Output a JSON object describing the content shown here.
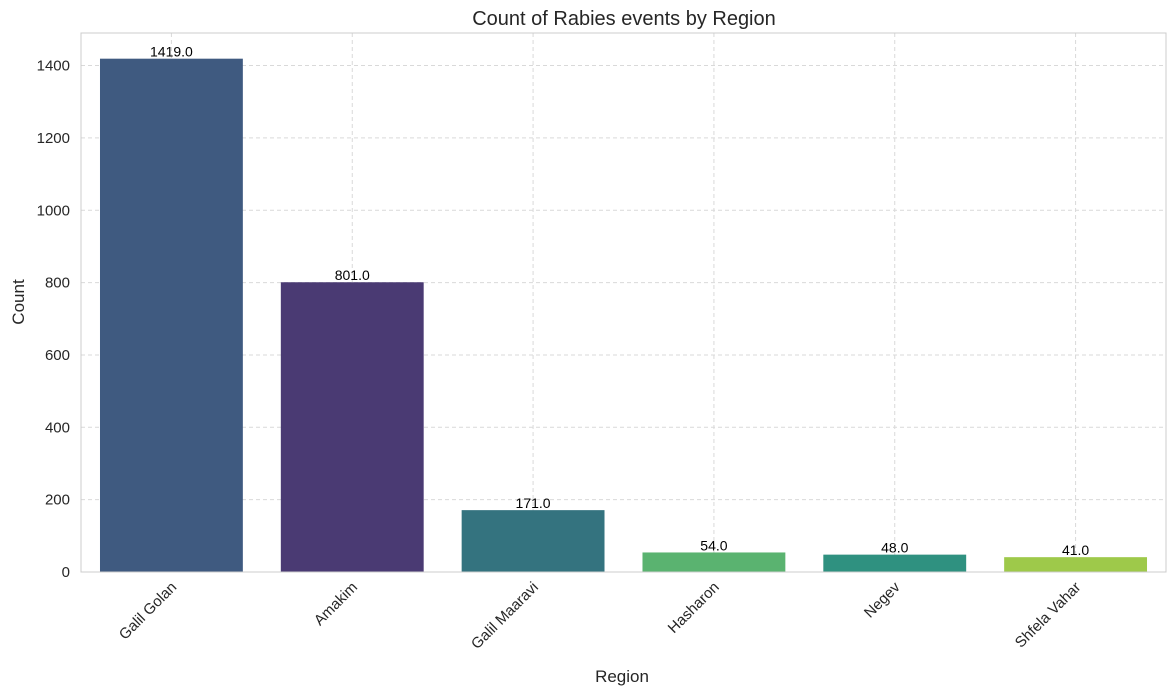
{
  "chart_data": {
    "type": "bar",
    "title": "Count of Rabies events by Region",
    "xlabel": "Region",
    "ylabel": "Count",
    "categories": [
      "Galil Golan",
      "Amakim",
      "Galil Maaravi",
      "Hasharon",
      "Negev",
      "Shfela Vahar"
    ],
    "values": [
      1419,
      801,
      171,
      54,
      48,
      41
    ],
    "value_labels": [
      "1419.0",
      "801.0",
      "171.0",
      "54.0",
      "48.0",
      "41.0"
    ],
    "colors": [
      "#3f5a80",
      "#4a3a73",
      "#34737f",
      "#5ab370",
      "#2f9180",
      "#9ec94a"
    ],
    "ylim": [
      0,
      1490
    ],
    "yticks": [
      0,
      200,
      400,
      600,
      800,
      1000,
      1200,
      1400
    ],
    "grid": true,
    "xtick_rotation": "45 degrees"
  }
}
